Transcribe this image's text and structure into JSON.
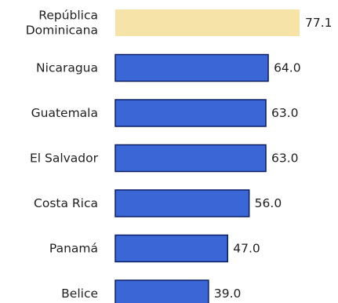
{
  "chart_data": {
    "type": "bar",
    "orientation": "horizontal",
    "categories": [
      "República Dominicana",
      "Nicaragua",
      "Guatemala",
      "El Salvador",
      "Costa Rica",
      "Panamá",
      "Belice"
    ],
    "category_lines": [
      [
        "República",
        "Dominicana"
      ],
      [
        "Nicaragua"
      ],
      [
        "Guatemala"
      ],
      [
        "El Salvador"
      ],
      [
        "Costa Rica"
      ],
      [
        "Panamá"
      ],
      [
        "Belice"
      ]
    ],
    "values": [
      77.1,
      64.0,
      63.0,
      63.0,
      56.0,
      47.0,
      39.0
    ],
    "value_labels": [
      "77.1",
      "64.0",
      "63.0",
      "63.0",
      "56.0",
      "47.0",
      "39.0"
    ],
    "bar_colors": [
      "#f5e3a8",
      "#3a66d6",
      "#3a66d6",
      "#3a66d6",
      "#3a66d6",
      "#3a66d6",
      "#3a66d6"
    ],
    "bar_stroke": "#0a1e66",
    "highlight_category": "República Dominicana",
    "xlim": [
      0,
      77.1
    ],
    "grid": false,
    "legend": "none",
    "title": "",
    "xlabel": "",
    "ylabel": ""
  }
}
